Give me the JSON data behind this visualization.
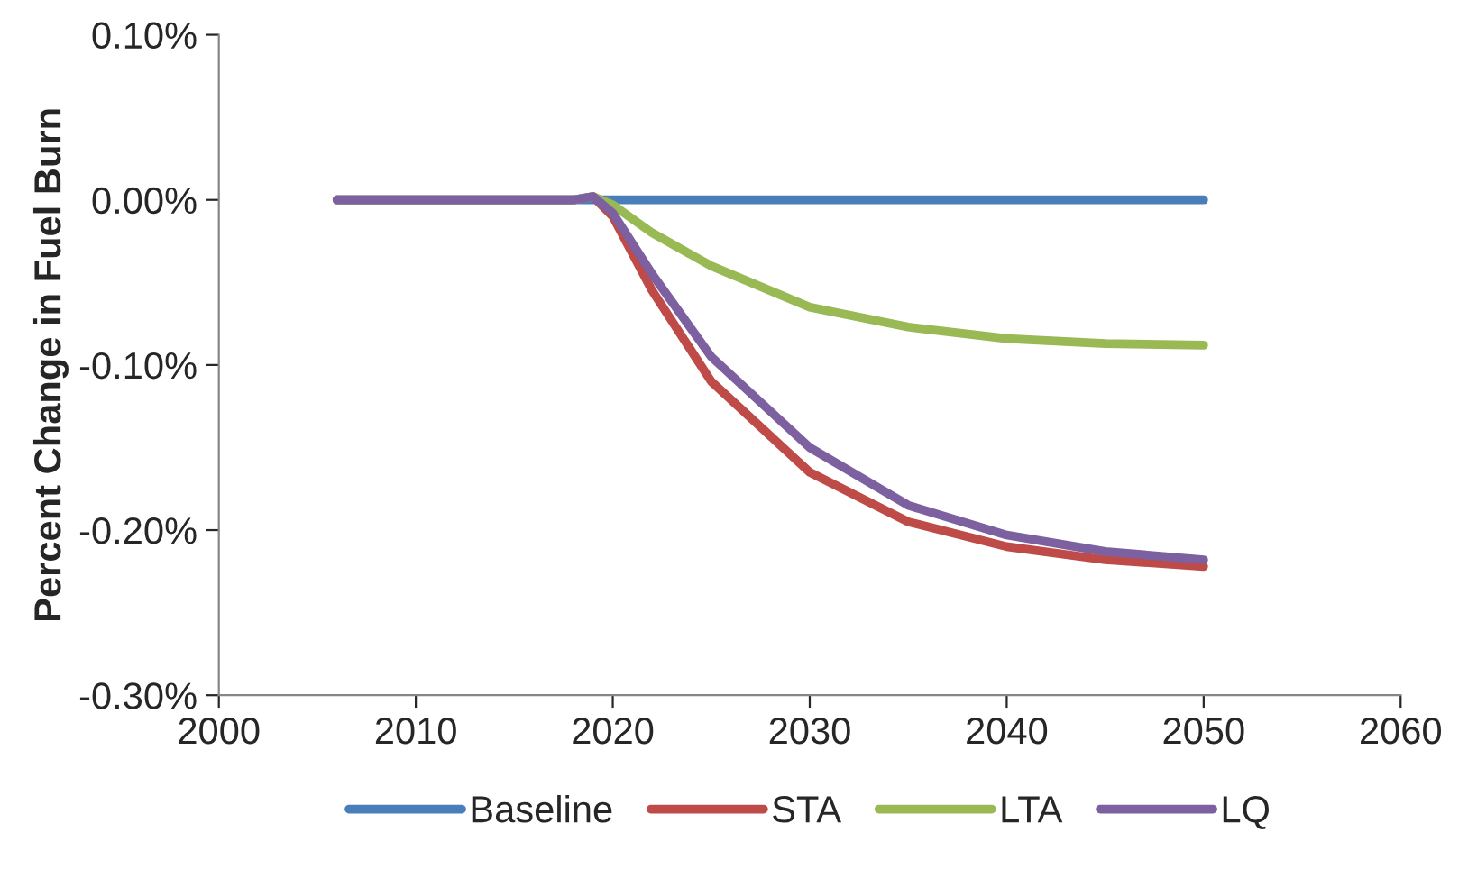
{
  "chart_data": {
    "type": "line",
    "ylabel": "Percent Change in Fuel Burn",
    "xlim": [
      2000,
      2060
    ],
    "xticks": [
      2000,
      2010,
      2020,
      2030,
      2040,
      2050,
      2060
    ],
    "ylim": [
      -0.3,
      0.1
    ],
    "yticks": [
      {
        "value": -0.3,
        "label": "-0.30%"
      },
      {
        "value": -0.2,
        "label": "-0.20%"
      },
      {
        "value": -0.1,
        "label": "-0.10%"
      },
      {
        "value": 0,
        "label": "0.00%"
      },
      {
        "value": 0.1,
        "label": "0.10%"
      }
    ],
    "grid": false,
    "legend": "bottom",
    "marker": "none",
    "line_style": "solid",
    "series": [
      {
        "name": "Baseline",
        "color": "#4a7ebb",
        "x": [
          2006,
          2019,
          2050
        ],
        "values": [
          0,
          0,
          0
        ]
      },
      {
        "name": "STA",
        "color": "#be4b48",
        "x": [
          2006,
          2018,
          2019,
          2020,
          2022,
          2025,
          2030,
          2035,
          2040,
          2045,
          2050
        ],
        "values": [
          0,
          0,
          0.002,
          -0.01,
          -0.055,
          -0.11,
          -0.165,
          -0.195,
          -0.21,
          -0.218,
          -0.222
        ]
      },
      {
        "name": "LTA",
        "color": "#98b954",
        "x": [
          2006,
          2018,
          2019,
          2020,
          2022,
          2025,
          2030,
          2035,
          2040,
          2045,
          2050
        ],
        "values": [
          0,
          0,
          0.002,
          -0.003,
          -0.02,
          -0.04,
          -0.065,
          -0.077,
          -0.084,
          -0.087,
          -0.088
        ]
      },
      {
        "name": "LQ",
        "color": "#7d60a0",
        "x": [
          2006,
          2018,
          2019,
          2020,
          2022,
          2025,
          2030,
          2035,
          2040,
          2045,
          2050
        ],
        "values": [
          0,
          0,
          0.002,
          -0.008,
          -0.045,
          -0.095,
          -0.15,
          -0.185,
          -0.203,
          -0.213,
          -0.218
        ]
      }
    ]
  }
}
